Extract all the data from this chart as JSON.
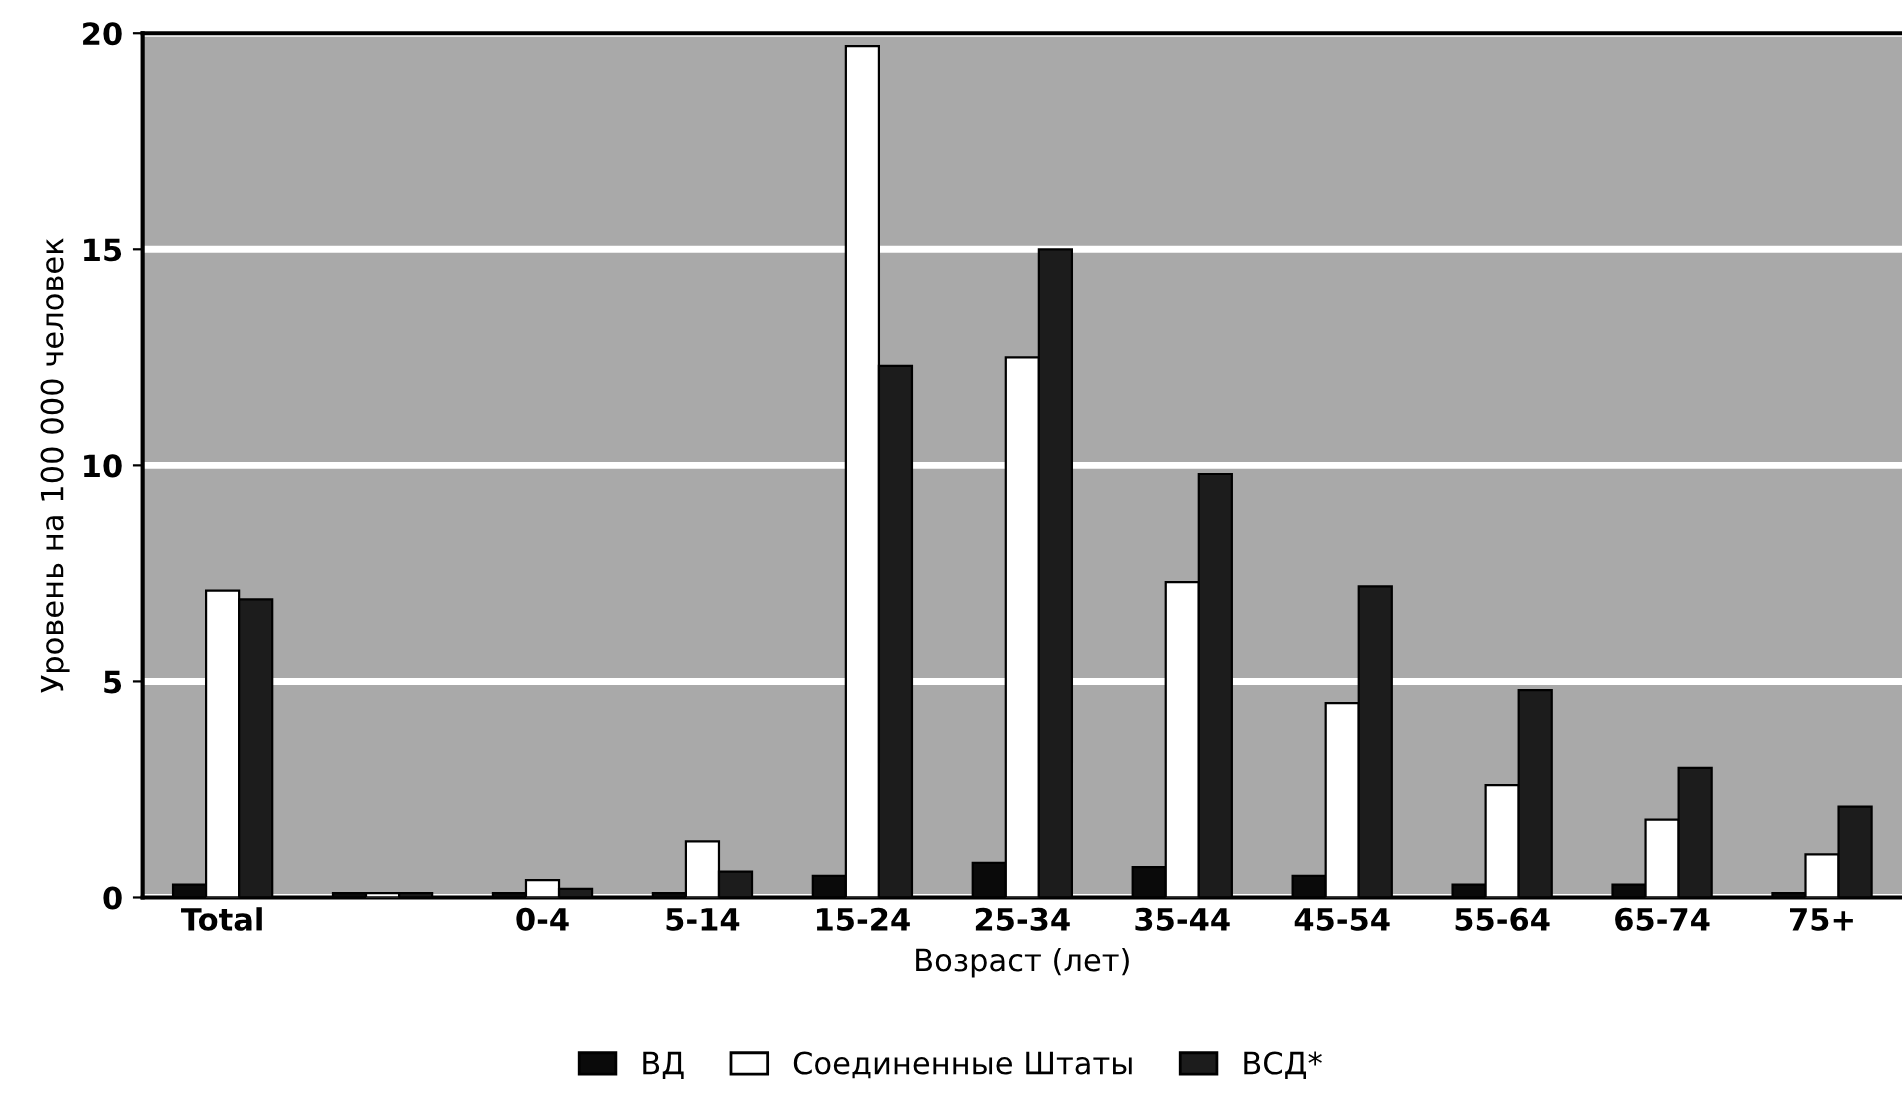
{
  "chart_data": {
    "type": "bar",
    "xlabel": "Возраст (лет)",
    "ylabel": "Уровень на 100 000 человек",
    "categories": [
      "Total",
      null,
      "0-4",
      "5-14",
      "15-24",
      "25-34",
      "35-44",
      "45-54",
      "55-64",
      "65-74",
      "75+"
    ],
    "series": [
      {
        "name": "ВД",
        "color": "#0a0a0a",
        "values": [
          0.3,
          0.1,
          0.1,
          0.1,
          0.5,
          0.8,
          0.7,
          0.5,
          0.3,
          0.3,
          0.1
        ]
      },
      {
        "name": "Соединенные Штаты",
        "color": "#ffffff",
        "values": [
          7.1,
          0.1,
          0.4,
          1.3,
          19.7,
          12.5,
          7.3,
          4.5,
          2.6,
          1.8,
          1.0
        ]
      },
      {
        "name": "ВСД*",
        "color": "#1c1c1c",
        "values": [
          6.9,
          0.1,
          0.2,
          0.6,
          12.3,
          15.0,
          9.8,
          7.2,
          4.8,
          3.0,
          2.1
        ]
      }
    ],
    "ylim": [
      0,
      20
    ],
    "yticks": [
      0,
      5,
      10,
      15,
      20
    ],
    "grid": "y",
    "legend": "bottom"
  }
}
